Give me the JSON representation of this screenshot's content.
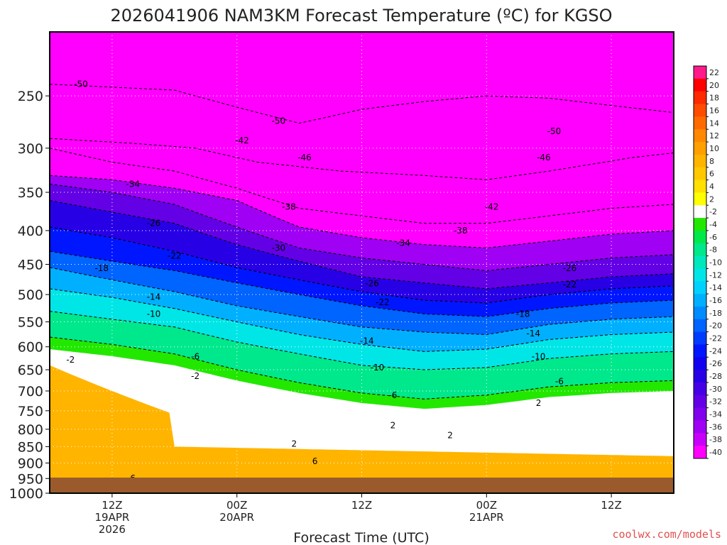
{
  "chart_data": {
    "type": "heatmap",
    "title": "2026041906 NAM3KM Forecast Temperature (ºC) for KGSO",
    "xlabel": "Forecast Time (UTC)",
    "ylabel": "",
    "y_axis": {
      "unit": "hPa",
      "scale": "log",
      "range": [
        1000,
        200
      ],
      "ticks": [
        250,
        300,
        350,
        400,
        450,
        500,
        550,
        600,
        650,
        700,
        750,
        800,
        850,
        900,
        950,
        1000
      ]
    },
    "x_axis": {
      "unit": "forecast hour",
      "range": [
        0,
        60
      ],
      "ticks": [
        {
          "hour": 6,
          "lines": [
            "12Z",
            "19APR",
            "2026"
          ]
        },
        {
          "hour": 18,
          "lines": [
            "00Z",
            "20APR"
          ]
        },
        {
          "hour": 30,
          "lines": [
            "12Z"
          ]
        },
        {
          "hour": 42,
          "lines": [
            "00Z",
            "21APR"
          ]
        },
        {
          "hour": 54,
          "lines": [
            "12Z"
          ]
        }
      ]
    },
    "grid": true,
    "ground_color": "#9a5a2c",
    "colorbar": {
      "placement": "right",
      "levels": [
        22,
        20,
        18,
        16,
        14,
        12,
        10,
        8,
        6,
        4,
        2,
        -2,
        -4,
        -6,
        -8,
        -10,
        -12,
        -14,
        -16,
        -18,
        -20,
        -22,
        -24,
        -26,
        -28,
        -30,
        -32,
        -34,
        -36,
        -38,
        -40
      ],
      "colors": [
        "#ff1a8c",
        "#ff0000",
        "#ff2a00",
        "#ff4c00",
        "#ff6a00",
        "#ff8800",
        "#ff9f00",
        "#ffb400",
        "#ffc800",
        "#ffe000",
        "#ffff00",
        "#ffffff",
        "#22e800",
        "#00e84a",
        "#00e88c",
        "#00e8bc",
        "#00e6e6",
        "#00d2ff",
        "#00b0ff",
        "#008cff",
        "#0064ff",
        "#003cff",
        "#0016ff",
        "#1400f0",
        "#2800e6",
        "#4600e6",
        "#6400e6",
        "#8200ee",
        "#a000f4",
        "#c800fa",
        "#ff00ff"
      ]
    },
    "isotherms": [
      {
        "value": -50,
        "points": [
          [
            0,
            240
          ],
          [
            12,
            245
          ],
          [
            24,
            275
          ],
          [
            30,
            262
          ],
          [
            36,
            255
          ],
          [
            42,
            250
          ],
          [
            48,
            252
          ],
          [
            60,
            265
          ]
        ]
      },
      {
        "value": -46,
        "points": [
          [
            0,
            290
          ],
          [
            8,
            295
          ],
          [
            14,
            300
          ],
          [
            20,
            315
          ],
          [
            28,
            325
          ],
          [
            36,
            330
          ],
          [
            42,
            335
          ],
          [
            48,
            325
          ],
          [
            56,
            310
          ],
          [
            60,
            305
          ]
        ]
      },
      {
        "value": -42,
        "points": [
          [
            0,
            300
          ],
          [
            6,
            315
          ],
          [
            12,
            325
          ],
          [
            18,
            345
          ],
          [
            24,
            370
          ],
          [
            30,
            380
          ],
          [
            36,
            390
          ],
          [
            42,
            390
          ],
          [
            48,
            380
          ],
          [
            54,
            370
          ],
          [
            60,
            365
          ]
        ]
      },
      {
        "value": -38,
        "points": [
          [
            0,
            330
          ],
          [
            6,
            335
          ],
          [
            12,
            345
          ],
          [
            18,
            360
          ],
          [
            24,
            395
          ],
          [
            30,
            410
          ],
          [
            36,
            420
          ],
          [
            42,
            425
          ],
          [
            48,
            415
          ],
          [
            54,
            405
          ],
          [
            60,
            400
          ]
        ]
      },
      {
        "value": -34,
        "points": [
          [
            0,
            340
          ],
          [
            6,
            350
          ],
          [
            12,
            365
          ],
          [
            18,
            395
          ],
          [
            24,
            425
          ],
          [
            30,
            440
          ],
          [
            36,
            450
          ],
          [
            42,
            460
          ],
          [
            48,
            450
          ],
          [
            54,
            440
          ],
          [
            60,
            435
          ]
        ]
      },
      {
        "value": -30,
        "points": [
          [
            0,
            360
          ],
          [
            6,
            375
          ],
          [
            12,
            390
          ],
          [
            18,
            420
          ],
          [
            24,
            445
          ],
          [
            30,
            470
          ],
          [
            36,
            480
          ],
          [
            42,
            490
          ],
          [
            48,
            480
          ],
          [
            54,
            470
          ],
          [
            60,
            465
          ]
        ]
      },
      {
        "value": -26,
        "points": [
          [
            0,
            395
          ],
          [
            6,
            410
          ],
          [
            12,
            430
          ],
          [
            18,
            455
          ],
          [
            24,
            475
          ],
          [
            30,
            495
          ],
          [
            36,
            510
          ],
          [
            42,
            515
          ],
          [
            48,
            500
          ],
          [
            54,
            490
          ],
          [
            60,
            485
          ]
        ]
      },
      {
        "value": -22,
        "points": [
          [
            0,
            430
          ],
          [
            6,
            445
          ],
          [
            12,
            460
          ],
          [
            18,
            480
          ],
          [
            24,
            500
          ],
          [
            30,
            520
          ],
          [
            36,
            535
          ],
          [
            42,
            540
          ],
          [
            48,
            525
          ],
          [
            54,
            515
          ],
          [
            60,
            510
          ]
        ]
      },
      {
        "value": -18,
        "points": [
          [
            0,
            455
          ],
          [
            6,
            475
          ],
          [
            12,
            495
          ],
          [
            18,
            520
          ],
          [
            24,
            540
          ],
          [
            30,
            560
          ],
          [
            36,
            570
          ],
          [
            42,
            575
          ],
          [
            48,
            555
          ],
          [
            54,
            545
          ],
          [
            60,
            540
          ]
        ]
      },
      {
        "value": -14,
        "points": [
          [
            0,
            490
          ],
          [
            6,
            505
          ],
          [
            12,
            525
          ],
          [
            18,
            550
          ],
          [
            24,
            575
          ],
          [
            30,
            595
          ],
          [
            36,
            610
          ],
          [
            42,
            605
          ],
          [
            48,
            585
          ],
          [
            54,
            575
          ],
          [
            60,
            570
          ]
        ]
      },
      {
        "value": -10,
        "points": [
          [
            0,
            530
          ],
          [
            6,
            545
          ],
          [
            12,
            560
          ],
          [
            18,
            590
          ],
          [
            24,
            615
          ],
          [
            30,
            640
          ],
          [
            36,
            650
          ],
          [
            42,
            645
          ],
          [
            48,
            625
          ],
          [
            54,
            615
          ],
          [
            60,
            610
          ]
        ]
      },
      {
        "value": -6,
        "points": [
          [
            0,
            580
          ],
          [
            6,
            595
          ],
          [
            12,
            615
          ],
          [
            18,
            650
          ],
          [
            24,
            680
          ],
          [
            30,
            705
          ],
          [
            36,
            720
          ],
          [
            42,
            710
          ],
          [
            48,
            690
          ],
          [
            54,
            680
          ],
          [
            60,
            675
          ]
        ]
      }
    ],
    "contour_labels": [
      {
        "text": "-50",
        "hour": 3.0,
        "p": 240
      },
      {
        "text": "-50",
        "hour": 22.0,
        "p": 273
      },
      {
        "text": "-50",
        "hour": 48.5,
        "p": 283
      },
      {
        "text": "-42",
        "hour": 18.5,
        "p": 292
      },
      {
        "text": "-46",
        "hour": 24.5,
        "p": 310
      },
      {
        "text": "-46",
        "hour": 47.5,
        "p": 310
      },
      {
        "text": "-34",
        "hour": 8.0,
        "p": 340
      },
      {
        "text": "-38",
        "hour": 23.0,
        "p": 368
      },
      {
        "text": "-42",
        "hour": 42.5,
        "p": 368
      },
      {
        "text": "-26",
        "hour": 10.0,
        "p": 390
      },
      {
        "text": "-38",
        "hour": 39.5,
        "p": 400
      },
      {
        "text": "-34",
        "hour": 34.0,
        "p": 418
      },
      {
        "text": "-30",
        "hour": 22.0,
        "p": 425
      },
      {
        "text": "-22",
        "hour": 12.0,
        "p": 437
      },
      {
        "text": "-26",
        "hour": 50.0,
        "p": 456
      },
      {
        "text": "-18",
        "hour": 5.0,
        "p": 456
      },
      {
        "text": "-26",
        "hour": 31.0,
        "p": 481
      },
      {
        "text": "-22",
        "hour": 50.0,
        "p": 483
      },
      {
        "text": "-14",
        "hour": 10.0,
        "p": 504
      },
      {
        "text": "-22",
        "hour": 32.0,
        "p": 514
      },
      {
        "text": "-10",
        "hour": 10.0,
        "p": 535
      },
      {
        "text": "-18",
        "hour": 45.5,
        "p": 535
      },
      {
        "text": "-14",
        "hour": 46.5,
        "p": 573
      },
      {
        "text": "-14",
        "hour": 30.5,
        "p": 588
      },
      {
        "text": "-10",
        "hour": 47.0,
        "p": 621
      },
      {
        "text": "-6",
        "hour": 14.0,
        "p": 621
      },
      {
        "text": "-10",
        "hour": 31.5,
        "p": 645
      },
      {
        "text": "-2",
        "hour": 14.0,
        "p": 665
      },
      {
        "text": "-6",
        "hour": 49.0,
        "p": 677
      },
      {
        "text": "-2",
        "hour": 2.0,
        "p": 628
      },
      {
        "text": "-6",
        "hour": 33.0,
        "p": 711
      },
      {
        "text": "2",
        "hour": 47.0,
        "p": 730
      },
      {
        "text": "2",
        "hour": 33.0,
        "p": 789
      },
      {
        "text": "2",
        "hour": 23.5,
        "p": 842
      },
      {
        "text": "2",
        "hour": 38.5,
        "p": 817
      },
      {
        "text": "6",
        "hour": 25.5,
        "p": 895
      },
      {
        "text": "6",
        "hour": 8.0,
        "p": 949
      }
    ]
  },
  "credit": {
    "text": "coolwx.com/models",
    "color": "#e05050"
  }
}
